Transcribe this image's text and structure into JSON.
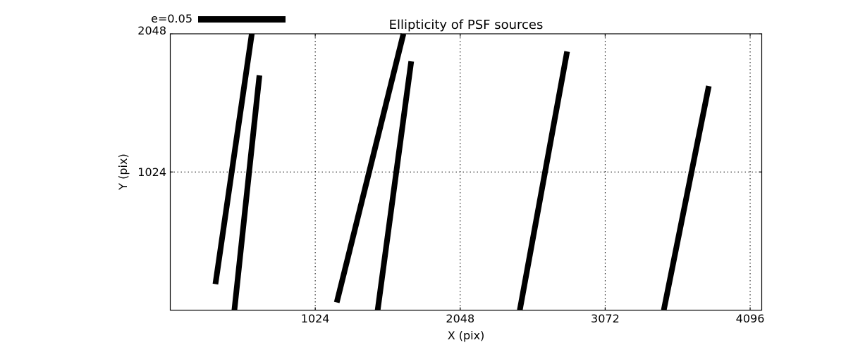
{
  "figure": {
    "background_color": "#ffffff",
    "foreground_color": "#000000"
  },
  "chart_data": {
    "type": "line",
    "variant": "quiver-ellipticity-whiskers",
    "title": "Ellipticity of PSF sources",
    "xlabel": "X (pix)",
    "ylabel": "Y (pix)",
    "xlim": [
      0,
      4178
    ],
    "ylim": [
      0,
      2048
    ],
    "x_ticks": [
      1024,
      2048,
      3072,
      4096
    ],
    "y_ticks": [
      1024,
      2048
    ],
    "grid": "dotted black",
    "legend": {
      "label": "e=0.05",
      "position": "upper-left, above axes",
      "key_color": "#000000"
    },
    "series": [
      {
        "name": "psf-ellipticity-sticks",
        "color": "#000000",
        "segments": [
          {
            "x1": 319,
            "y1": 193,
            "x2": 576,
            "y2": 2048
          },
          {
            "x1": 453,
            "y1": 0,
            "x2": 630,
            "y2": 1740
          },
          {
            "x1": 1176,
            "y1": 57,
            "x2": 1647,
            "y2": 2048
          },
          {
            "x1": 1465,
            "y1": 0,
            "x2": 1702,
            "y2": 1844
          },
          {
            "x1": 2469,
            "y1": 0,
            "x2": 2803,
            "y2": 1917
          },
          {
            "x1": 3486,
            "y1": 0,
            "x2": 3804,
            "y2": 1661
          }
        ]
      }
    ]
  }
}
